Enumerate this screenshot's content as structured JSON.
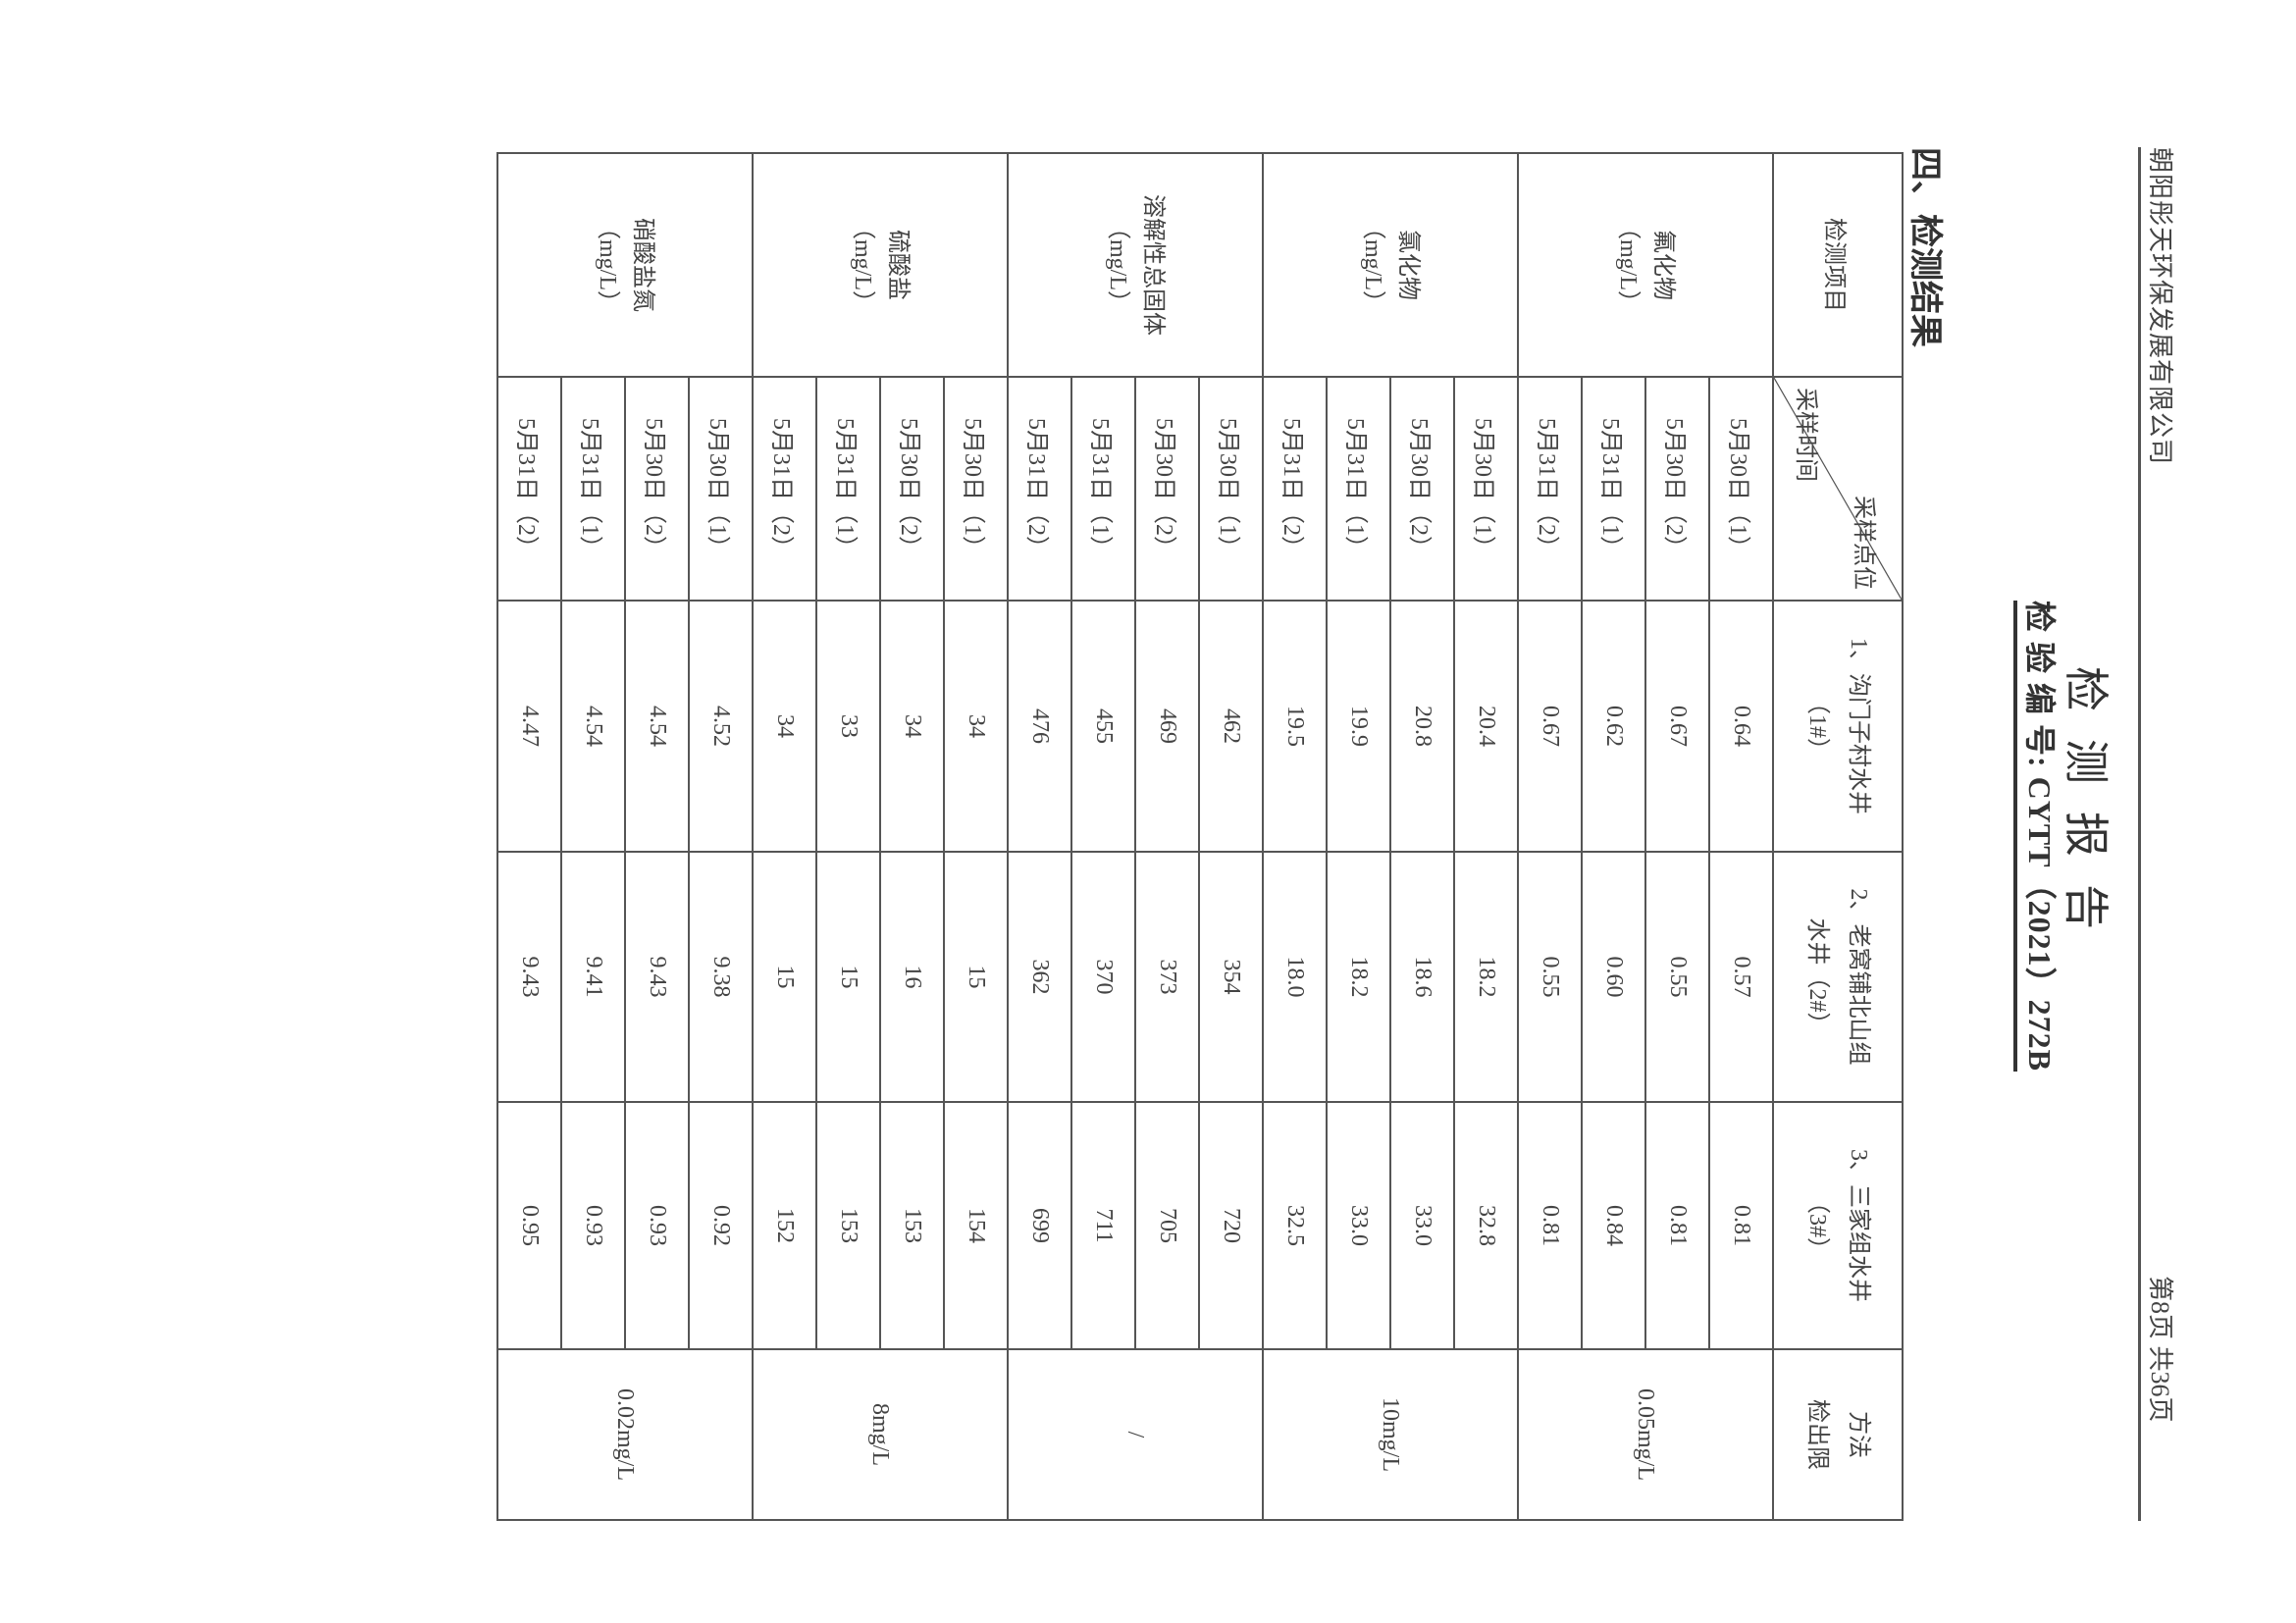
{
  "header": {
    "company": "朝阳彤天环保发展有限公司",
    "page_info": "第8页  共36页",
    "title": "检测报告",
    "report_no": "检 验 编 号: CYTT（2021）272B"
  },
  "section_title": "四、检测结果",
  "table": {
    "item_header": "检测项目",
    "site_header": "采样点位",
    "time_header": "采样时间",
    "sites": [
      [
        "1、沟门子村水井",
        "（1#）"
      ],
      [
        "2、老窝铺北山组",
        "水井（2#）"
      ],
      [
        "3、三家组水井",
        "（3#）"
      ]
    ],
    "limit_header": [
      "方法",
      "检出限"
    ],
    "groups": [
      {
        "name": "氟化物",
        "unit": "（mg/L）",
        "limit": "0.05mg/L",
        "rows": [
          [
            "5月30日（1）",
            "0.64",
            "0.57",
            "0.81"
          ],
          [
            "5月30日（2）",
            "0.67",
            "0.55",
            "0.81"
          ],
          [
            "5月31日（1）",
            "0.62",
            "0.60",
            "0.84"
          ],
          [
            "5月31日（2）",
            "0.67",
            "0.55",
            "0.81"
          ]
        ]
      },
      {
        "name": "氯化物",
        "unit": "（mg/L）",
        "limit": "10mg/L",
        "rows": [
          [
            "5月30日（1）",
            "20.4",
            "18.2",
            "32.8"
          ],
          [
            "5月30日（2）",
            "20.8",
            "18.6",
            "33.0"
          ],
          [
            "5月31日（1）",
            "19.9",
            "18.2",
            "33.0"
          ],
          [
            "5月31日（2）",
            "19.5",
            "18.0",
            "32.5"
          ]
        ]
      },
      {
        "name": "溶解性总固体",
        "unit": "（mg/L）",
        "limit": "/",
        "rows": [
          [
            "5月30日（1）",
            "462",
            "354",
            "720"
          ],
          [
            "5月30日（2）",
            "469",
            "373",
            "705"
          ],
          [
            "5月31日（1）",
            "455",
            "370",
            "711"
          ],
          [
            "5月31日（2）",
            "476",
            "362",
            "699"
          ]
        ]
      },
      {
        "name": "硫酸盐",
        "unit": "（mg/L）",
        "limit": "8mg/L",
        "rows": [
          [
            "5月30日（1）",
            "34",
            "15",
            "154"
          ],
          [
            "5月30日（2）",
            "34",
            "16",
            "153"
          ],
          [
            "5月31日（1）",
            "33",
            "15",
            "153"
          ],
          [
            "5月31日（2）",
            "34",
            "15",
            "152"
          ]
        ]
      },
      {
        "name": "硝酸盐氮",
        "unit": "（mg/L）",
        "limit": "0.02mg/L",
        "rows": [
          [
            "5月30日（1）",
            "4.52",
            "9.38",
            "0.92"
          ],
          [
            "5月30日（2）",
            "4.54",
            "9.43",
            "0.93"
          ],
          [
            "5月31日（1）",
            "4.54",
            "9.41",
            "0.93"
          ],
          [
            "5月31日（2）",
            "4.47",
            "9.43",
            "0.95"
          ]
        ]
      }
    ]
  }
}
